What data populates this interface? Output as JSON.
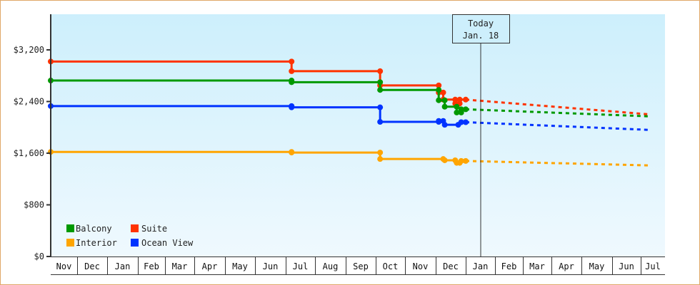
{
  "chart_data": {
    "type": "line",
    "title": "",
    "xlabel": "",
    "ylabel": "",
    "ylim": [
      0,
      3840
    ],
    "y_ticks": [
      "$0",
      "$800",
      "$1,600",
      "$2,400",
      "$3,200"
    ],
    "y_tick_values": [
      0,
      800,
      1600,
      2400,
      3200
    ],
    "x_ticks": [
      "Nov",
      "Dec",
      "Jan",
      "Feb",
      "Mar",
      "Apr",
      "May",
      "Jun",
      "Jul",
      "Aug",
      "Sep",
      "Oct",
      "Nov",
      "Dec",
      "Jan",
      "Feb",
      "Mar",
      "Apr",
      "May",
      "Jun",
      "Jul"
    ],
    "today_marker": {
      "line1": "Today",
      "line2": "Jan. 18"
    },
    "legend": [
      {
        "name": "Balcony",
        "color": "#009900"
      },
      {
        "name": "Suite",
        "color": "#ff3300"
      },
      {
        "name": "Interior",
        "color": "#ffa500"
      },
      {
        "name": "Ocean View",
        "color": "#0033ff"
      }
    ],
    "grid": false,
    "legend_position": "lower-left",
    "series": [
      {
        "name": "Suite",
        "color": "#ff3300",
        "history": [
          [
            0,
            3020
          ],
          [
            8.2,
            3020
          ],
          [
            8.2,
            2870
          ],
          [
            11.15,
            2870
          ],
          [
            11.15,
            2650
          ],
          [
            13.1,
            2650
          ],
          [
            13.1,
            2540
          ],
          [
            13.25,
            2540
          ],
          [
            13.25,
            2430
          ],
          [
            13.65,
            2430
          ],
          [
            13.65,
            2370
          ],
          [
            13.8,
            2370
          ],
          [
            13.8,
            2430
          ],
          [
            14.0,
            2430
          ]
        ],
        "forecast": [
          [
            14.0,
            2430
          ],
          [
            20.4,
            2200
          ]
        ]
      },
      {
        "name": "Balcony",
        "color": "#009900",
        "history": [
          [
            0,
            2725
          ],
          [
            8.2,
            2725
          ],
          [
            8.2,
            2700
          ],
          [
            11.15,
            2700
          ],
          [
            11.15,
            2580
          ],
          [
            13.1,
            2580
          ],
          [
            13.1,
            2420
          ],
          [
            13.3,
            2420
          ],
          [
            13.3,
            2320
          ],
          [
            13.7,
            2320
          ],
          [
            13.7,
            2230
          ],
          [
            13.85,
            2230
          ],
          [
            13.85,
            2280
          ],
          [
            14.0,
            2280
          ]
        ],
        "forecast": [
          [
            14.0,
            2280
          ],
          [
            20.4,
            2170
          ]
        ]
      },
      {
        "name": "Ocean View",
        "color": "#0033ff",
        "history": [
          [
            0,
            2330
          ],
          [
            8.2,
            2330
          ],
          [
            8.2,
            2310
          ],
          [
            11.15,
            2310
          ],
          [
            11.15,
            2085
          ],
          [
            13.1,
            2085
          ],
          [
            13.1,
            2100
          ],
          [
            13.25,
            2100
          ],
          [
            13.3,
            2040
          ],
          [
            13.75,
            2040
          ],
          [
            13.85,
            2080
          ],
          [
            14.0,
            2080
          ]
        ],
        "forecast": [
          [
            14.0,
            2080
          ],
          [
            20.4,
            1960
          ]
        ]
      },
      {
        "name": "Interior",
        "color": "#ffa500",
        "history": [
          [
            0,
            1620
          ],
          [
            8.2,
            1620
          ],
          [
            8.2,
            1610
          ],
          [
            11.15,
            1610
          ],
          [
            11.15,
            1510
          ],
          [
            13.1,
            1510
          ],
          [
            13.25,
            1510
          ],
          [
            13.3,
            1490
          ],
          [
            13.65,
            1490
          ],
          [
            13.7,
            1450
          ],
          [
            13.8,
            1450
          ],
          [
            13.85,
            1480
          ],
          [
            14.0,
            1480
          ]
        ],
        "forecast": [
          [
            14.0,
            1480
          ],
          [
            20.4,
            1410
          ]
        ]
      }
    ]
  },
  "legend": {
    "balcony": "Balcony",
    "suite": "Suite",
    "interior": "Interior",
    "ocean_view": "Ocean View"
  },
  "today": {
    "line1": "Today",
    "line2": "Jan. 18"
  }
}
